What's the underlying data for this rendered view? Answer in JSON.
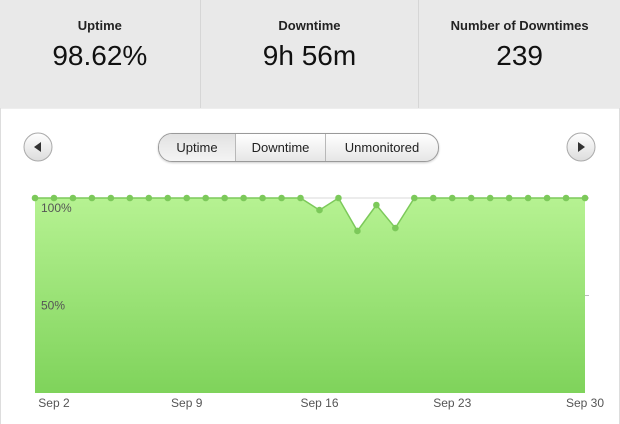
{
  "stats": [
    {
      "label": "Uptime",
      "value": "98.62%"
    },
    {
      "label": "Downtime",
      "value": "9h 56m"
    },
    {
      "label": "Number of Downtimes",
      "value": "239"
    }
  ],
  "tabs": [
    "Uptime",
    "Downtime",
    "Unmonitored"
  ],
  "chart_data": {
    "type": "area",
    "categories": [
      null,
      "Sep 2",
      null,
      null,
      null,
      null,
      null,
      null,
      "Sep 9",
      null,
      null,
      null,
      null,
      null,
      null,
      "Sep 16",
      null,
      null,
      null,
      null,
      null,
      null,
      "Sep 23",
      null,
      null,
      null,
      null,
      null,
      null,
      "Sep 30"
    ],
    "values": [
      100,
      100,
      100,
      100,
      100,
      100,
      100,
      100,
      100,
      100,
      100,
      100,
      100,
      100,
      100,
      93.8,
      100,
      83.1,
      96.4,
      84.6,
      100,
      100,
      100,
      100,
      100,
      100,
      100,
      100,
      100,
      100
    ],
    "color": "#7cc95a",
    "ylim": [
      0,
      100
    ],
    "yticks": [
      {
        "value": 100,
        "label": "100%"
      },
      {
        "value": 50,
        "label": "50%"
      }
    ],
    "grid": true
  }
}
